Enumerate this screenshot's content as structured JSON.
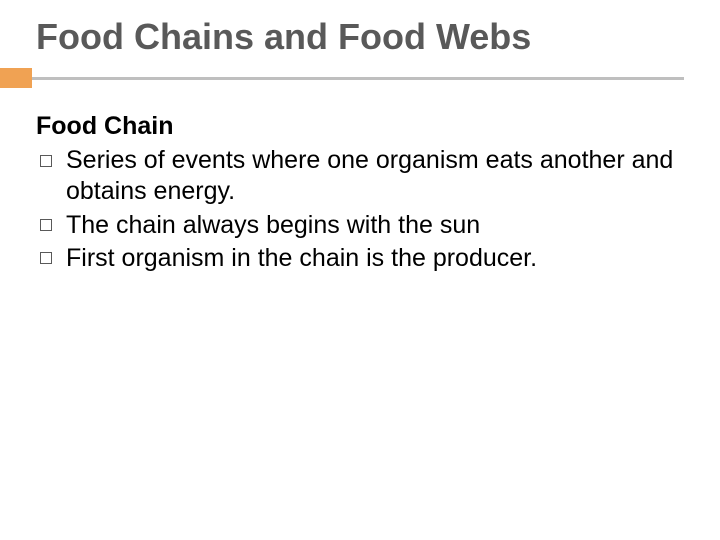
{
  "slide": {
    "title": "Food Chains and Food Webs",
    "title_fontsize": 36,
    "title_color": "#595959",
    "subheading": "Food Chain",
    "subheading_fontsize": 25,
    "body_fontsize": 25,
    "body_color": "#000000",
    "bullets": [
      "Series of events where one organism eats another and obtains energy.",
      "The chain always begins with the sun",
      "First organism in the chain is the producer."
    ],
    "accent": {
      "orange_block_color": "#f0a253",
      "orange_block_width": 36,
      "orange_block_height": 20,
      "gray_bar_color": "#bfbfbf",
      "gray_bar_height": 3,
      "gray_bar_width": 652
    },
    "background_color": "#ffffff",
    "bullet_marker": {
      "shape": "hollow-square",
      "border_color": "#595959",
      "size": 10
    }
  }
}
